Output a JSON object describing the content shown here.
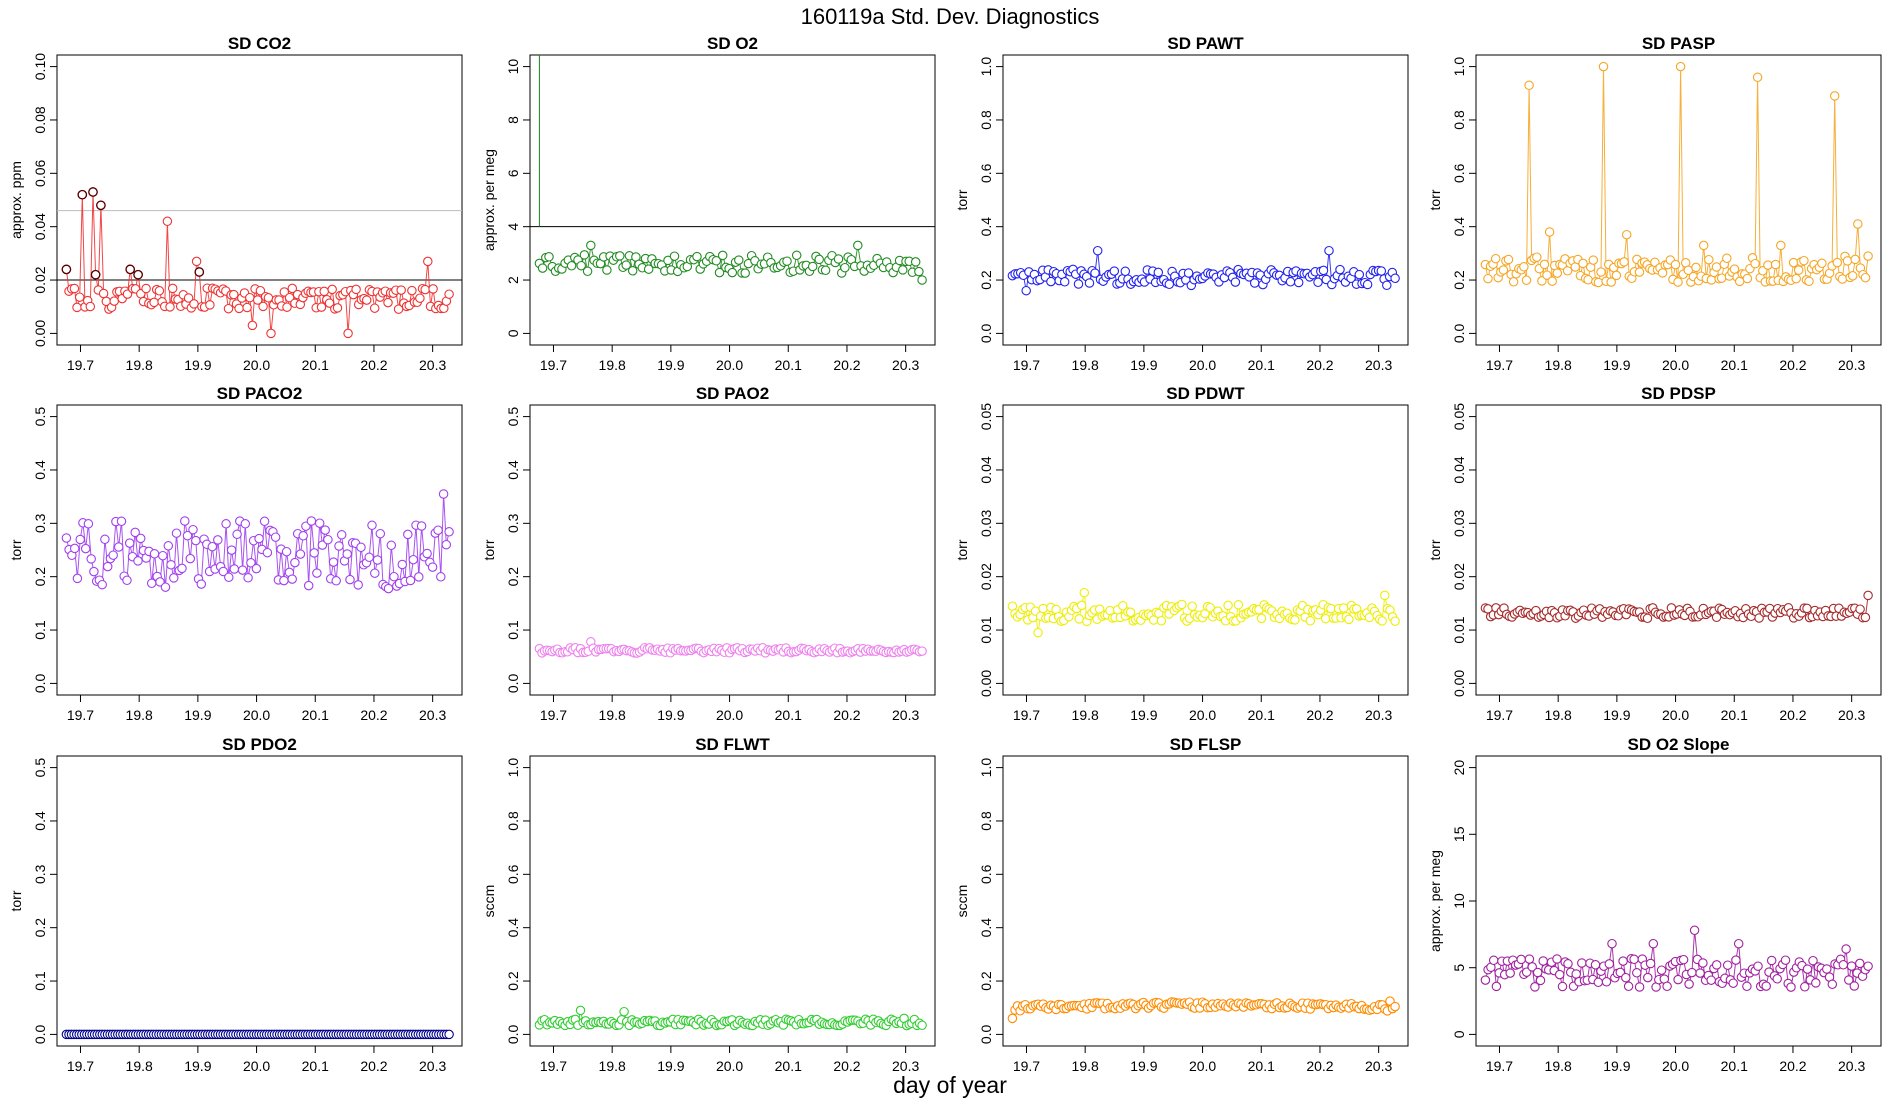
{
  "title": "160119a   Std. Dev. Diagnostics",
  "xlabel": "day of year",
  "colors": {
    "axis": "#000000",
    "refline": "#000000",
    "threshold": "#bbbbbb",
    "o2marker": "#1e7d1e"
  },
  "chart_data": [
    {
      "type": "scatter",
      "title": "SD CO2",
      "ylabel": "approx. ppm",
      "ylim": [
        0,
        0.1
      ],
      "yticks": [
        "0.00",
        "0.02",
        "0.04",
        "0.06",
        "0.08",
        "0.10"
      ],
      "ytick_values": [
        0,
        0.02,
        0.04,
        0.06,
        0.08,
        0.1
      ],
      "xlim": [
        19.66,
        20.35
      ],
      "xticks": [
        "19.7",
        "19.8",
        "19.9",
        "20.0",
        "20.1",
        "20.2",
        "20.3"
      ],
      "color": "#ee3333",
      "highlight_color": "#550000",
      "refline": 0.02,
      "threshold": 0.046,
      "series": {
        "x_start": 19.676,
        "x_end": 20.328,
        "n": 145,
        "base": 0.013,
        "amp": 0.004,
        "seed": 1,
        "spikes": [
          [
            19.675,
            0.024
          ],
          [
            19.705,
            0.052
          ],
          [
            19.722,
            0.053
          ],
          [
            19.726,
            0.022
          ],
          [
            19.733,
            0.048
          ],
          [
            19.783,
            0.024
          ],
          [
            19.797,
            0.022
          ],
          [
            19.847,
            0.042
          ],
          [
            19.897,
            0.027
          ],
          [
            19.903,
            0.023
          ],
          [
            20.026,
            0.0
          ],
          [
            20.157,
            0.0
          ],
          [
            20.291,
            0.027
          ],
          [
            19.994,
            0.003
          ]
        ],
        "highlights": [
          [
            19.675,
            0.024
          ],
          [
            19.705,
            0.052
          ],
          [
            19.722,
            0.053
          ],
          [
            19.726,
            0.022
          ],
          [
            19.733,
            0.048
          ],
          [
            19.783,
            0.024
          ],
          [
            19.797,
            0.022
          ],
          [
            19.903,
            0.023
          ]
        ]
      }
    },
    {
      "type": "scatter",
      "title": "SD O2",
      "ylabel": "approx. per meg",
      "ylim": [
        0,
        10
      ],
      "yticks": [
        "0",
        "2",
        "4",
        "6",
        "8",
        "10"
      ],
      "ytick_values": [
        0,
        2,
        4,
        6,
        8,
        10
      ],
      "xlim": [
        19.66,
        20.35
      ],
      "xticks": [
        "19.7",
        "19.8",
        "19.9",
        "20.0",
        "20.1",
        "20.2",
        "20.3"
      ],
      "color": "#228b22",
      "refline": 4,
      "vline": 19.676,
      "series": {
        "x_start": 19.676,
        "x_end": 20.328,
        "n": 120,
        "base": 2.6,
        "amp": 0.35,
        "seed": 2,
        "spikes": [
          [
            19.763,
            3.3
          ],
          [
            20.218,
            3.3
          ],
          [
            20.328,
            2.0
          ]
        ]
      }
    },
    {
      "type": "scatter",
      "title": "SD PAWT",
      "ylabel": "torr",
      "ylim": [
        0,
        1
      ],
      "yticks": [
        "0.0",
        "0.2",
        "0.4",
        "0.6",
        "0.8",
        "1.0"
      ],
      "ytick_values": [
        0,
        0.2,
        0.4,
        0.6,
        0.8,
        1
      ],
      "xlim": [
        19.66,
        20.35
      ],
      "xticks": [
        "19.7",
        "19.8",
        "19.9",
        "20.0",
        "20.1",
        "20.2",
        "20.3"
      ],
      "color": "#2222ee",
      "series": {
        "x_start": 19.676,
        "x_end": 20.328,
        "n": 140,
        "base": 0.21,
        "amp": 0.03,
        "seed": 3,
        "spikes": [
          [
            19.82,
            0.31
          ],
          [
            20.215,
            0.31
          ],
          [
            19.7,
            0.16
          ]
        ]
      }
    },
    {
      "type": "scatter",
      "title": "SD PASP",
      "ylabel": "torr",
      "ylim": [
        0,
        1
      ],
      "yticks": [
        "0.0",
        "0.2",
        "0.4",
        "0.6",
        "0.8",
        "1.0"
      ],
      "ytick_values": [
        0,
        0.2,
        0.4,
        0.6,
        0.8,
        1
      ],
      "xlim": [
        19.66,
        20.35
      ],
      "xticks": [
        "19.7",
        "19.8",
        "19.9",
        "20.0",
        "20.1",
        "20.2",
        "20.3"
      ],
      "color": "#f5a623",
      "series": {
        "x_start": 19.676,
        "x_end": 20.328,
        "n": 150,
        "base": 0.24,
        "amp": 0.05,
        "seed": 4,
        "spikes": [
          [
            19.749,
            0.93
          ],
          [
            19.878,
            1.0
          ],
          [
            20.009,
            1.0
          ],
          [
            20.141,
            0.96
          ],
          [
            20.273,
            0.89
          ],
          [
            19.785,
            0.38
          ],
          [
            19.918,
            0.37
          ],
          [
            20.047,
            0.33
          ],
          [
            20.178,
            0.33
          ],
          [
            20.31,
            0.41
          ]
        ]
      }
    },
    {
      "type": "scatter",
      "title": "SD PACO2",
      "ylabel": "torr",
      "ylim": [
        0,
        0.5
      ],
      "yticks": [
        "0.0",
        "0.1",
        "0.2",
        "0.3",
        "0.4",
        "0.5"
      ],
      "ytick_values": [
        0,
        0.1,
        0.2,
        0.3,
        0.4,
        0.5
      ],
      "xlim": [
        19.66,
        20.35
      ],
      "xticks": [
        "19.7",
        "19.8",
        "19.9",
        "20.0",
        "20.1",
        "20.2",
        "20.3"
      ],
      "color": "#a040ee",
      "series": {
        "x_start": 19.676,
        "x_end": 20.328,
        "n": 140,
        "base": 0.24,
        "amp": 0.065,
        "seed": 5,
        "spikes": [
          [
            20.318,
            0.355
          ]
        ]
      }
    },
    {
      "type": "scatter",
      "title": "SD PAO2",
      "ylabel": "torr",
      "ylim": [
        0,
        0.5
      ],
      "yticks": [
        "0.0",
        "0.1",
        "0.2",
        "0.3",
        "0.4",
        "0.5"
      ],
      "ytick_values": [
        0,
        0.1,
        0.2,
        0.3,
        0.4,
        0.5
      ],
      "xlim": [
        19.66,
        20.35
      ],
      "xticks": [
        "19.7",
        "19.8",
        "19.9",
        "20.0",
        "20.1",
        "20.2",
        "20.3"
      ],
      "color": "#ee82ee",
      "series": {
        "x_start": 19.676,
        "x_end": 20.328,
        "n": 150,
        "base": 0.062,
        "amp": 0.005,
        "seed": 6,
        "spikes": [
          [
            19.765,
            0.078
          ]
        ]
      }
    },
    {
      "type": "scatter",
      "title": "SD PDWT",
      "ylabel": "torr",
      "ylim": [
        0,
        0.05
      ],
      "yticks": [
        "0.00",
        "0.01",
        "0.02",
        "0.03",
        "0.04",
        "0.05"
      ],
      "ytick_values": [
        0,
        0.01,
        0.02,
        0.03,
        0.04,
        0.05
      ],
      "xlim": [
        19.66,
        20.35
      ],
      "xticks": [
        "19.7",
        "19.8",
        "19.9",
        "20.0",
        "20.1",
        "20.2",
        "20.3"
      ],
      "color": "#eeee00",
      "series": {
        "x_start": 19.676,
        "x_end": 20.328,
        "n": 150,
        "base": 0.0132,
        "amp": 0.0016,
        "seed": 7,
        "spikes": [
          [
            19.8,
            0.017
          ],
          [
            20.31,
            0.0165
          ],
          [
            19.72,
            0.0095
          ]
        ]
      }
    },
    {
      "type": "scatter",
      "title": "SD PDSP",
      "ylabel": "torr",
      "ylim": [
        0,
        0.05
      ],
      "yticks": [
        "0.00",
        "0.01",
        "0.02",
        "0.03",
        "0.04",
        "0.05"
      ],
      "ytick_values": [
        0,
        0.01,
        0.02,
        0.03,
        0.04,
        0.05
      ],
      "xlim": [
        19.66,
        20.35
      ],
      "xticks": [
        "19.7",
        "19.8",
        "19.9",
        "20.0",
        "20.1",
        "20.2",
        "20.3"
      ],
      "color": "#a52a2a",
      "series": {
        "x_start": 19.676,
        "x_end": 20.328,
        "n": 145,
        "base": 0.0132,
        "amp": 0.001,
        "seed": 8,
        "spikes": [
          [
            20.328,
            0.0165
          ]
        ]
      }
    },
    {
      "type": "scatter",
      "title": "SD PDO2",
      "ylabel": "torr",
      "ylim": [
        0,
        0.5
      ],
      "yticks": [
        "0.0",
        "0.1",
        "0.2",
        "0.3",
        "0.4",
        "0.5"
      ],
      "ytick_values": [
        0,
        0.1,
        0.2,
        0.3,
        0.4,
        0.5
      ],
      "xlim": [
        19.66,
        20.35
      ],
      "xticks": [
        "19.7",
        "19.8",
        "19.9",
        "20.0",
        "20.1",
        "20.2",
        "20.3"
      ],
      "color": "#00008b",
      "series": {
        "x_start": 19.676,
        "x_end": 20.328,
        "n": 150,
        "base": 0.0,
        "amp": 0.0,
        "seed": 9,
        "spikes": []
      }
    },
    {
      "type": "scatter",
      "title": "SD FLWT",
      "ylabel": "sccm",
      "ylim": [
        0,
        1
      ],
      "yticks": [
        "0.0",
        "0.2",
        "0.4",
        "0.6",
        "0.8",
        "1.0"
      ],
      "ytick_values": [
        0,
        0.2,
        0.4,
        0.6,
        0.8,
        1
      ],
      "xlim": [
        19.66,
        20.35
      ],
      "xticks": [
        "19.7",
        "19.8",
        "19.9",
        "20.0",
        "20.1",
        "20.2",
        "20.3"
      ],
      "color": "#32cd32",
      "series": {
        "x_start": 19.676,
        "x_end": 20.328,
        "n": 150,
        "base": 0.045,
        "amp": 0.012,
        "seed": 10,
        "spikes": [
          [
            19.748,
            0.09
          ],
          [
            19.822,
            0.085
          ],
          [
            20.297,
            0.06
          ]
        ]
      }
    },
    {
      "type": "scatter",
      "title": "SD FLSP",
      "ylabel": "sccm",
      "ylim": [
        0,
        1
      ],
      "yticks": [
        "0.0",
        "0.2",
        "0.4",
        "0.6",
        "0.8",
        "1.0"
      ],
      "ytick_values": [
        0,
        0.2,
        0.4,
        0.6,
        0.8,
        1
      ],
      "xlim": [
        19.66,
        20.35
      ],
      "xticks": [
        "19.7",
        "19.8",
        "19.9",
        "20.0",
        "20.1",
        "20.2",
        "20.3"
      ],
      "color": "#ff8c00",
      "series": {
        "x_start": 19.676,
        "x_end": 20.328,
        "n": 150,
        "base": 0.098,
        "amp": 0.012,
        "seed": 11,
        "trend": true,
        "spikes": [
          [
            20.318,
            0.125
          ],
          [
            19.676,
            0.06
          ]
        ]
      }
    },
    {
      "type": "scatter",
      "title": "SD O2 Slope",
      "ylabel": "approx. per meg",
      "ylim": [
        0,
        20
      ],
      "yticks": [
        "0",
        "5",
        "10",
        "15",
        "20"
      ],
      "ytick_values": [
        0,
        5,
        10,
        15,
        20
      ],
      "xlim": [
        19.66,
        20.35
      ],
      "xticks": [
        "19.7",
        "19.8",
        "19.9",
        "20.0",
        "20.1",
        "20.2",
        "20.3"
      ],
      "color": "#a020a0",
      "series": {
        "x_start": 19.676,
        "x_end": 20.328,
        "n": 140,
        "base": 4.6,
        "amp": 1.1,
        "seed": 12,
        "spikes": [
          [
            20.032,
            7.8
          ],
          [
            19.892,
            6.8
          ],
          [
            19.96,
            6.8
          ],
          [
            20.107,
            6.8
          ],
          [
            20.292,
            6.4
          ]
        ]
      }
    }
  ]
}
